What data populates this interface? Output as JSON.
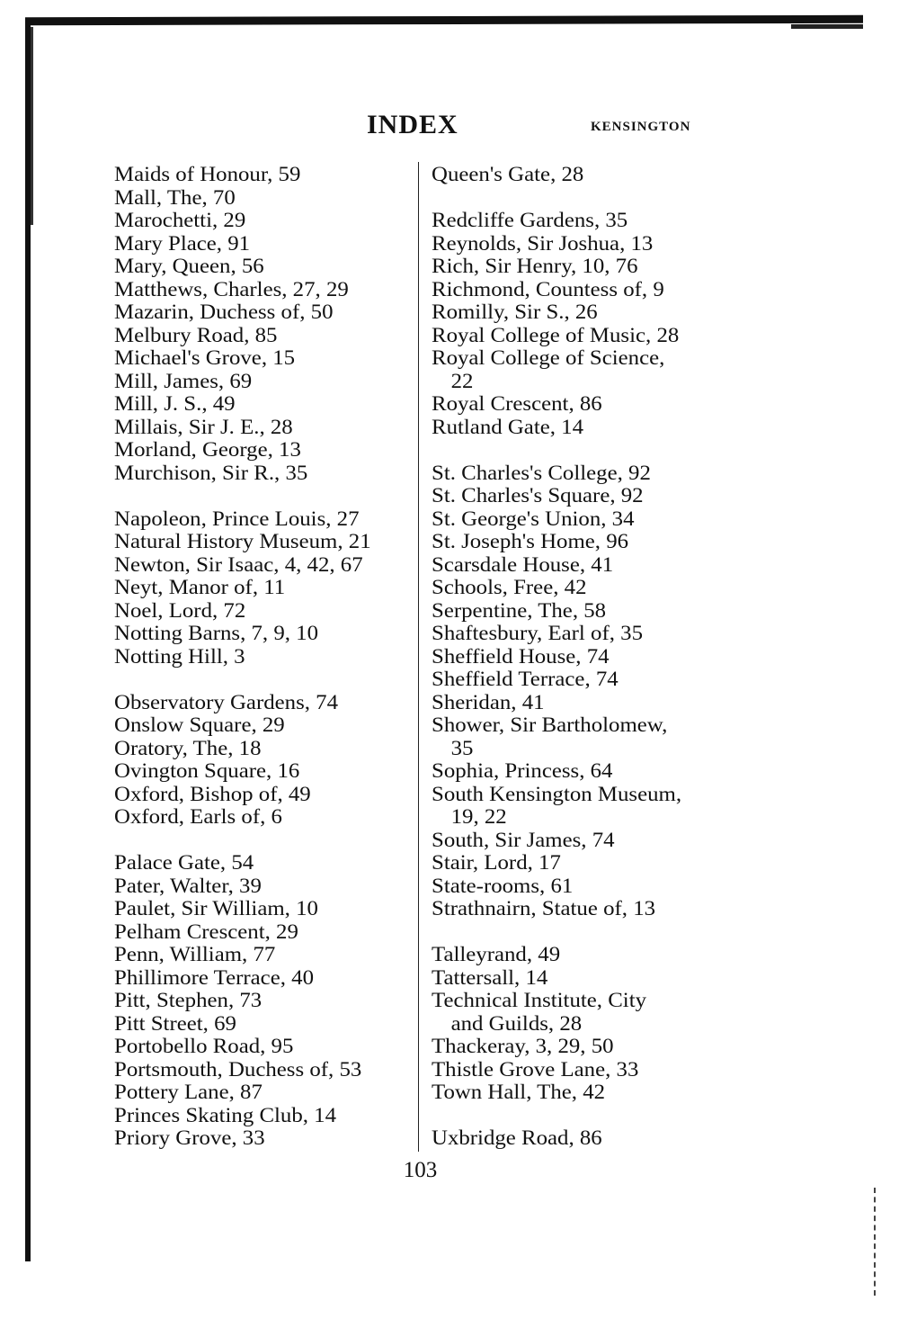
{
  "header": {
    "title": "INDEX",
    "running_head": "KENSINGTON"
  },
  "left_column": [
    [
      "Maids of Honour, 59",
      "Mall, The, 70",
      "Marochetti, 29",
      "Mary Place, 91",
      "Mary, Queen, 56",
      "Matthews, Charles, 27, 29",
      "Mazarin, Duchess of, 50",
      "Melbury Road, 85",
      "Michael's Grove, 15",
      "Mill, James, 69",
      "Mill, J. S., 49",
      "Millais, Sir J. E., 28",
      "Morland, George, 13",
      "Murchison, Sir R., 35"
    ],
    [
      "Napoleon, Prince Louis, 27",
      "Natural History Museum, 21",
      "Newton, Sir Isaac, 4, 42, 67",
      "Neyt, Manor of, 11",
      "Noel, Lord, 72",
      "Notting Barns, 7, 9, 10",
      "Notting Hill, 3"
    ],
    [
      "Observatory Gardens, 74",
      "Onslow Square, 29",
      "Oratory, The, 18",
      "Ovington Square, 16",
      "Oxford, Bishop of, 49",
      "Oxford, Earls of, 6"
    ],
    [
      "Palace Gate, 54",
      "Pater, Walter, 39",
      "Paulet, Sir William, 10",
      "Pelham Crescent, 29",
      "Penn, William, 77",
      "Phillimore Terrace, 40",
      "Pitt, Stephen, 73",
      "Pitt Street, 69",
      "Portobello Road, 95",
      "Portsmouth, Duchess of, 53",
      "Pottery Lane, 87",
      "Princes Skating Club, 14",
      "Priory Grove, 33"
    ]
  ],
  "right_column": [
    [
      "Queen's Gate, 28"
    ],
    [
      "Redcliffe Gardens, 35",
      "Reynolds, Sir Joshua, 13",
      "Rich, Sir Henry, 10, 76",
      "Richmond, Countess of, 9",
      "Romilly, Sir S., 26",
      "Royal College of Music, 28",
      {
        "entry": "Royal College of Science,",
        "cont": "22"
      },
      "Royal Crescent, 86",
      "Rutland Gate, 14"
    ],
    [
      "St. Charles's College, 92",
      "St. Charles's Square, 92",
      "St. George's Union, 34",
      "St. Joseph's Home, 96",
      "Scarsdale House, 41",
      "Schools, Free, 42",
      "Serpentine, The, 58",
      "Shaftesbury, Earl of, 35",
      "Sheffield House, 74",
      "Sheffield Terrace, 74",
      "Sheridan, 41",
      {
        "entry": "Shower, Sir Bartholomew,",
        "cont": "35"
      },
      "Sophia, Princess, 64",
      {
        "entry": "South Kensington Museum,",
        "cont": "19, 22"
      },
      "South, Sir James, 74",
      "Stair, Lord, 17",
      "State-rooms, 61",
      "Strathnairn, Statue of, 13"
    ],
    [
      "Talleyrand, 49",
      "Tattersall, 14",
      {
        "entry": "Technical Institute, City",
        "cont": "and Guilds, 28"
      },
      "Thackeray, 3, 29, 50",
      "Thistle Grove Lane, 33",
      "Town Hall, The, 42"
    ],
    [
      "Uxbridge Road, 86"
    ]
  ],
  "footer": {
    "page_number": "103"
  }
}
